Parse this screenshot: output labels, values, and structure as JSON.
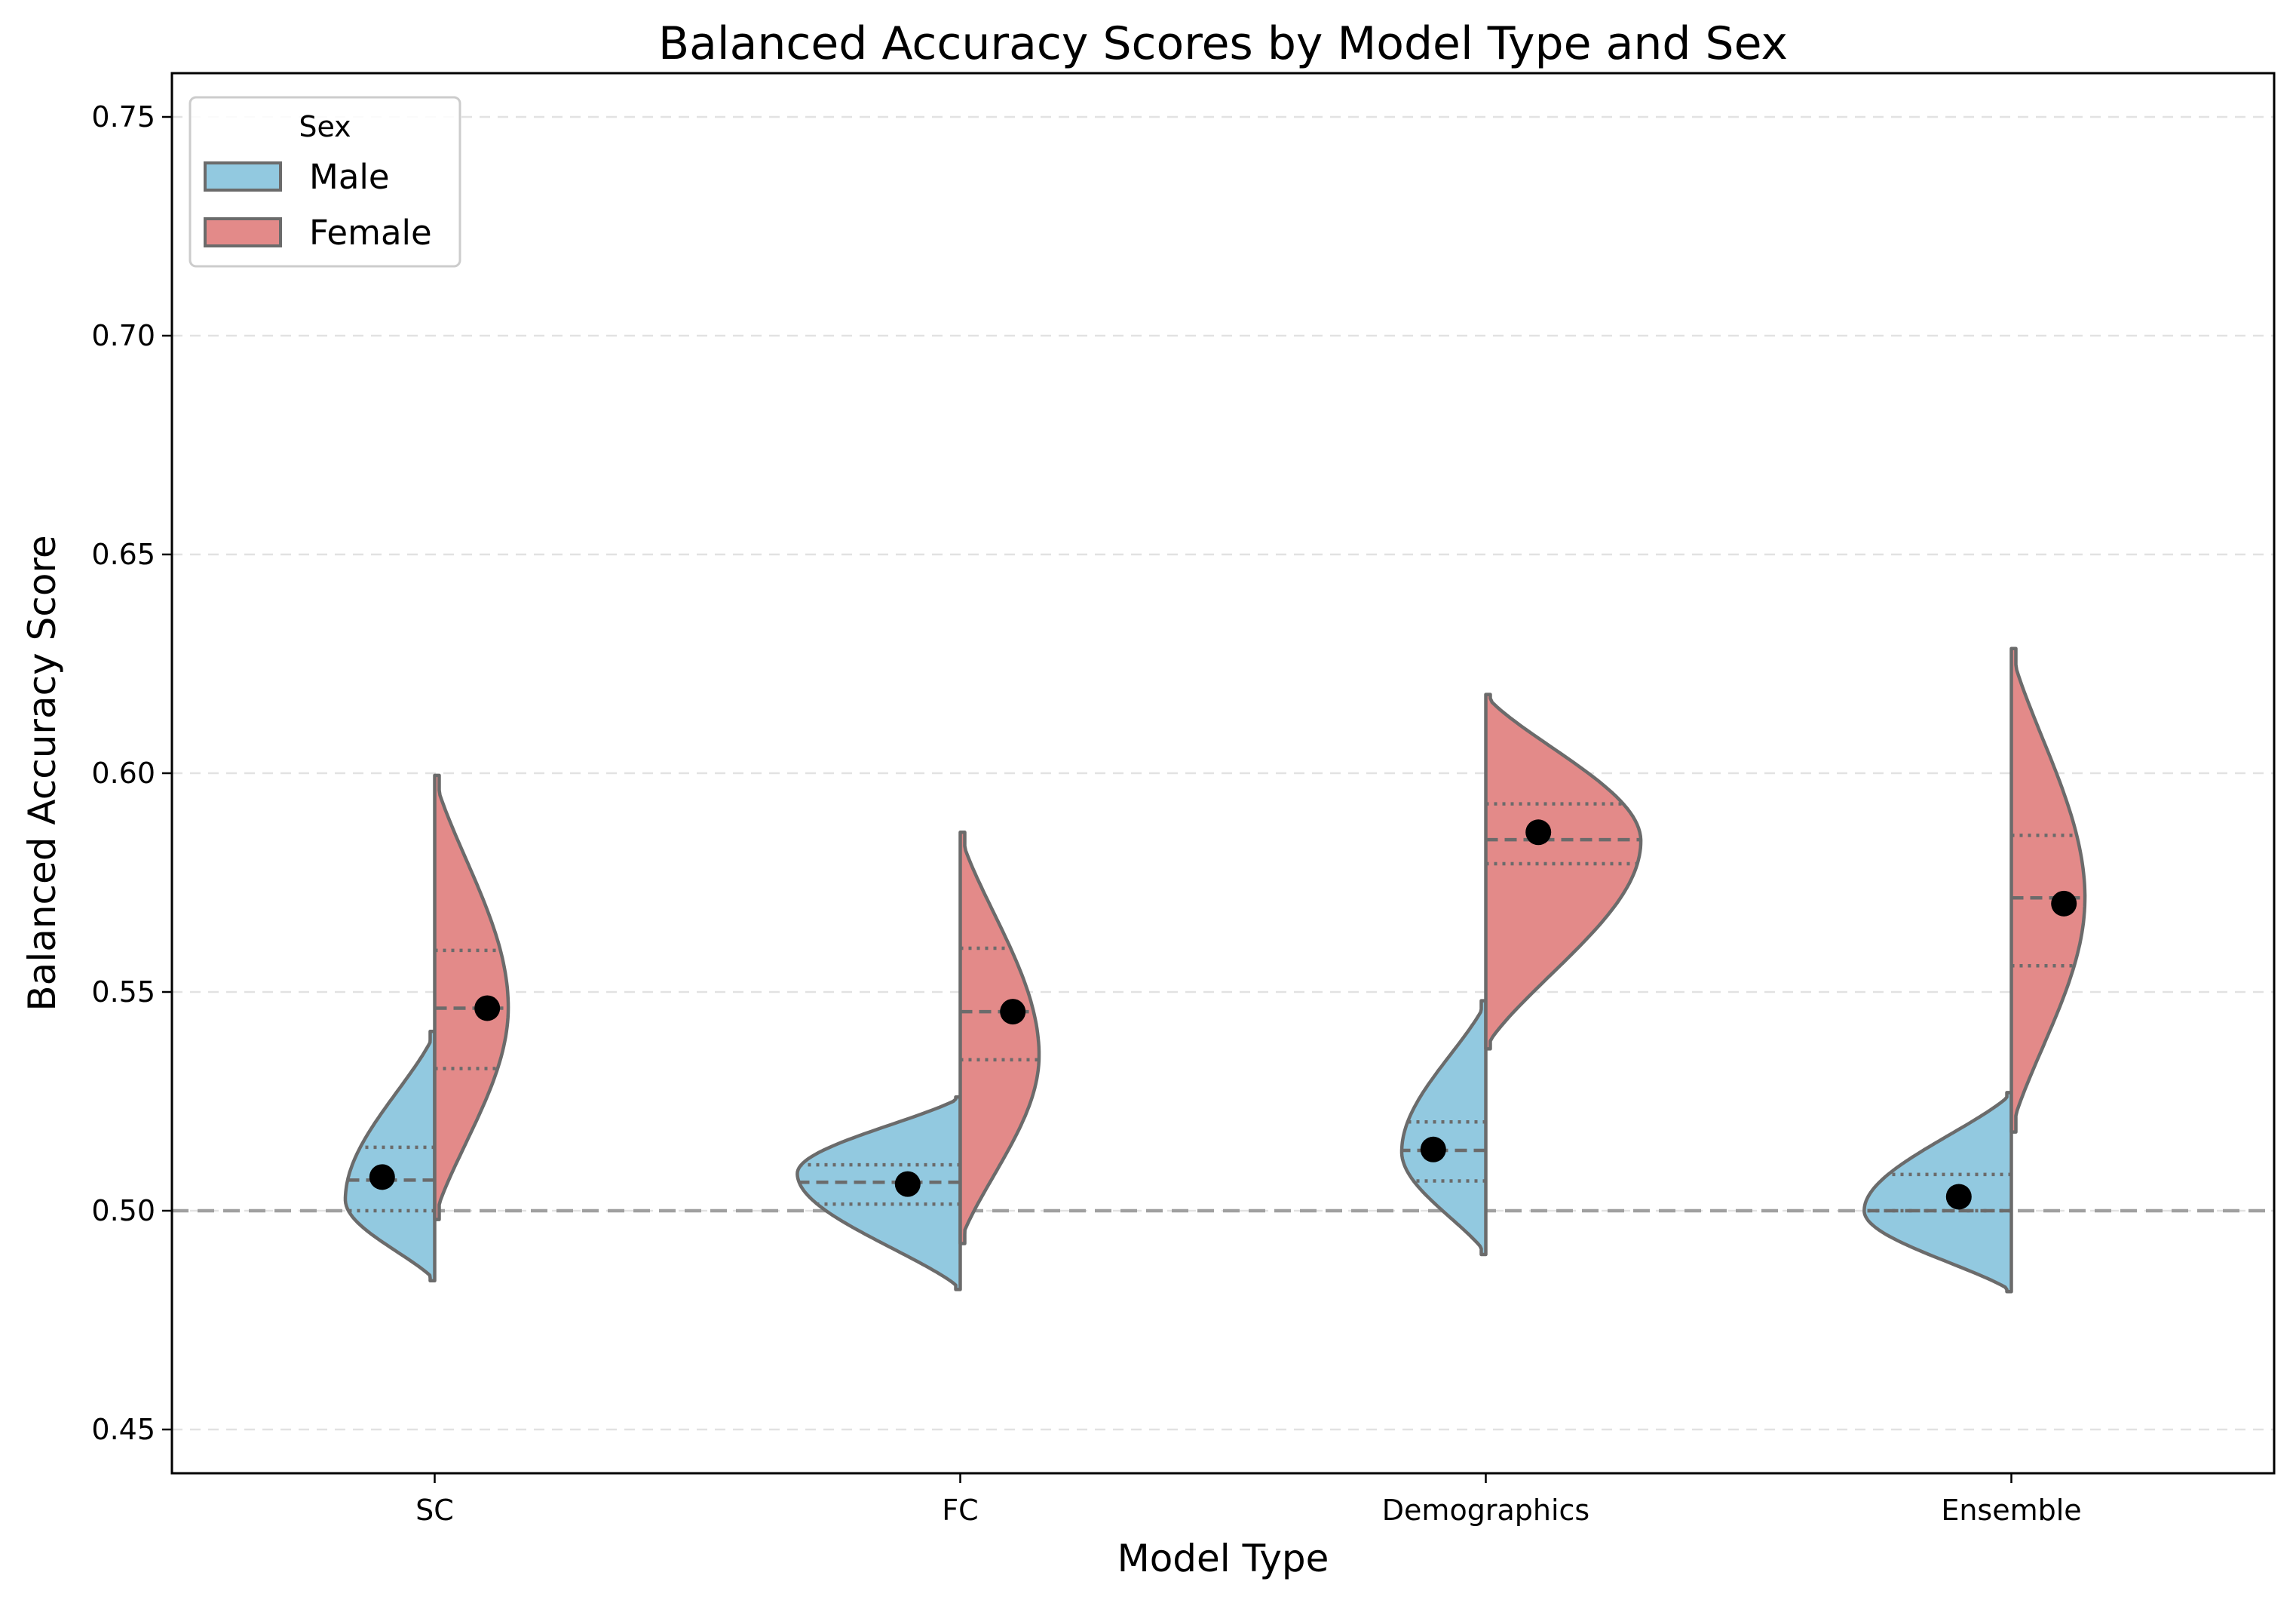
{
  "chart_data": {
    "type": "violin",
    "title": "Balanced Accuracy Scores by Model Type and Sex",
    "xlabel": "Model Type",
    "ylabel": "Balanced Accuracy Score",
    "ylim": [
      0.44,
      0.76
    ],
    "yticks": [
      "0.45",
      "0.50",
      "0.55",
      "0.60",
      "0.65",
      "0.70",
      "0.75"
    ],
    "categories": [
      "SC",
      "FC",
      "Demographics",
      "Ensemble"
    ],
    "reference_line": 0.5,
    "grid": "horizontal dashed",
    "legend": {
      "title": "Sex",
      "placement": "top-left",
      "entries": [
        "Male",
        "Female"
      ]
    },
    "colors": {
      "Male": "#92c9e0",
      "Female": "#e38a89",
      "outline": "#6b6b6b",
      "mean": "#000000"
    },
    "series": [
      {
        "name": "Male",
        "stats": [
          {
            "category": "SC",
            "min": 0.484,
            "q1": 0.5,
            "median": 0.507,
            "q3": 0.5145,
            "max": 0.541,
            "mean": 0.5077,
            "mode": 0.5025,
            "peak_width": 0.34
          },
          {
            "category": "FC",
            "min": 0.482,
            "q1": 0.5015,
            "median": 0.5065,
            "q3": 0.5105,
            "max": 0.526,
            "mean": 0.5061,
            "mode": 0.5085,
            "peak_width": 0.62
          },
          {
            "category": "Demographics",
            "min": 0.49,
            "q1": 0.5068,
            "median": 0.5138,
            "q3": 0.5203,
            "max": 0.548,
            "mean": 0.514,
            "mode": 0.5135,
            "peak_width": 0.32
          },
          {
            "category": "Ensemble",
            "min": 0.4815,
            "q1": 0.5,
            "median": 0.5,
            "q3": 0.5083,
            "max": 0.527,
            "mean": 0.5032,
            "mode": 0.5,
            "peak_width": 0.56
          }
        ]
      },
      {
        "name": "Female",
        "stats": [
          {
            "category": "SC",
            "min": 0.498,
            "q1": 0.5325,
            "median": 0.5463,
            "q3": 0.5595,
            "max": 0.5995,
            "mean": 0.5463,
            "mode": 0.5465,
            "peak_width": 0.28
          },
          {
            "category": "FC",
            "min": 0.4925,
            "q1": 0.5345,
            "median": 0.5455,
            "q3": 0.56,
            "max": 0.5865,
            "mean": 0.5455,
            "mode": 0.5355,
            "peak_width": 0.3
          },
          {
            "category": "Demographics",
            "min": 0.537,
            "q1": 0.5793,
            "median": 0.5848,
            "q3": 0.593,
            "max": 0.618,
            "mean": 0.5865,
            "mode": 0.5845,
            "peak_width": 0.59
          },
          {
            "category": "Ensemble",
            "min": 0.518,
            "q1": 0.556,
            "median": 0.5715,
            "q3": 0.5858,
            "max": 0.6285,
            "mean": 0.5702,
            "mode": 0.5715,
            "peak_width": 0.28
          }
        ]
      }
    ]
  }
}
